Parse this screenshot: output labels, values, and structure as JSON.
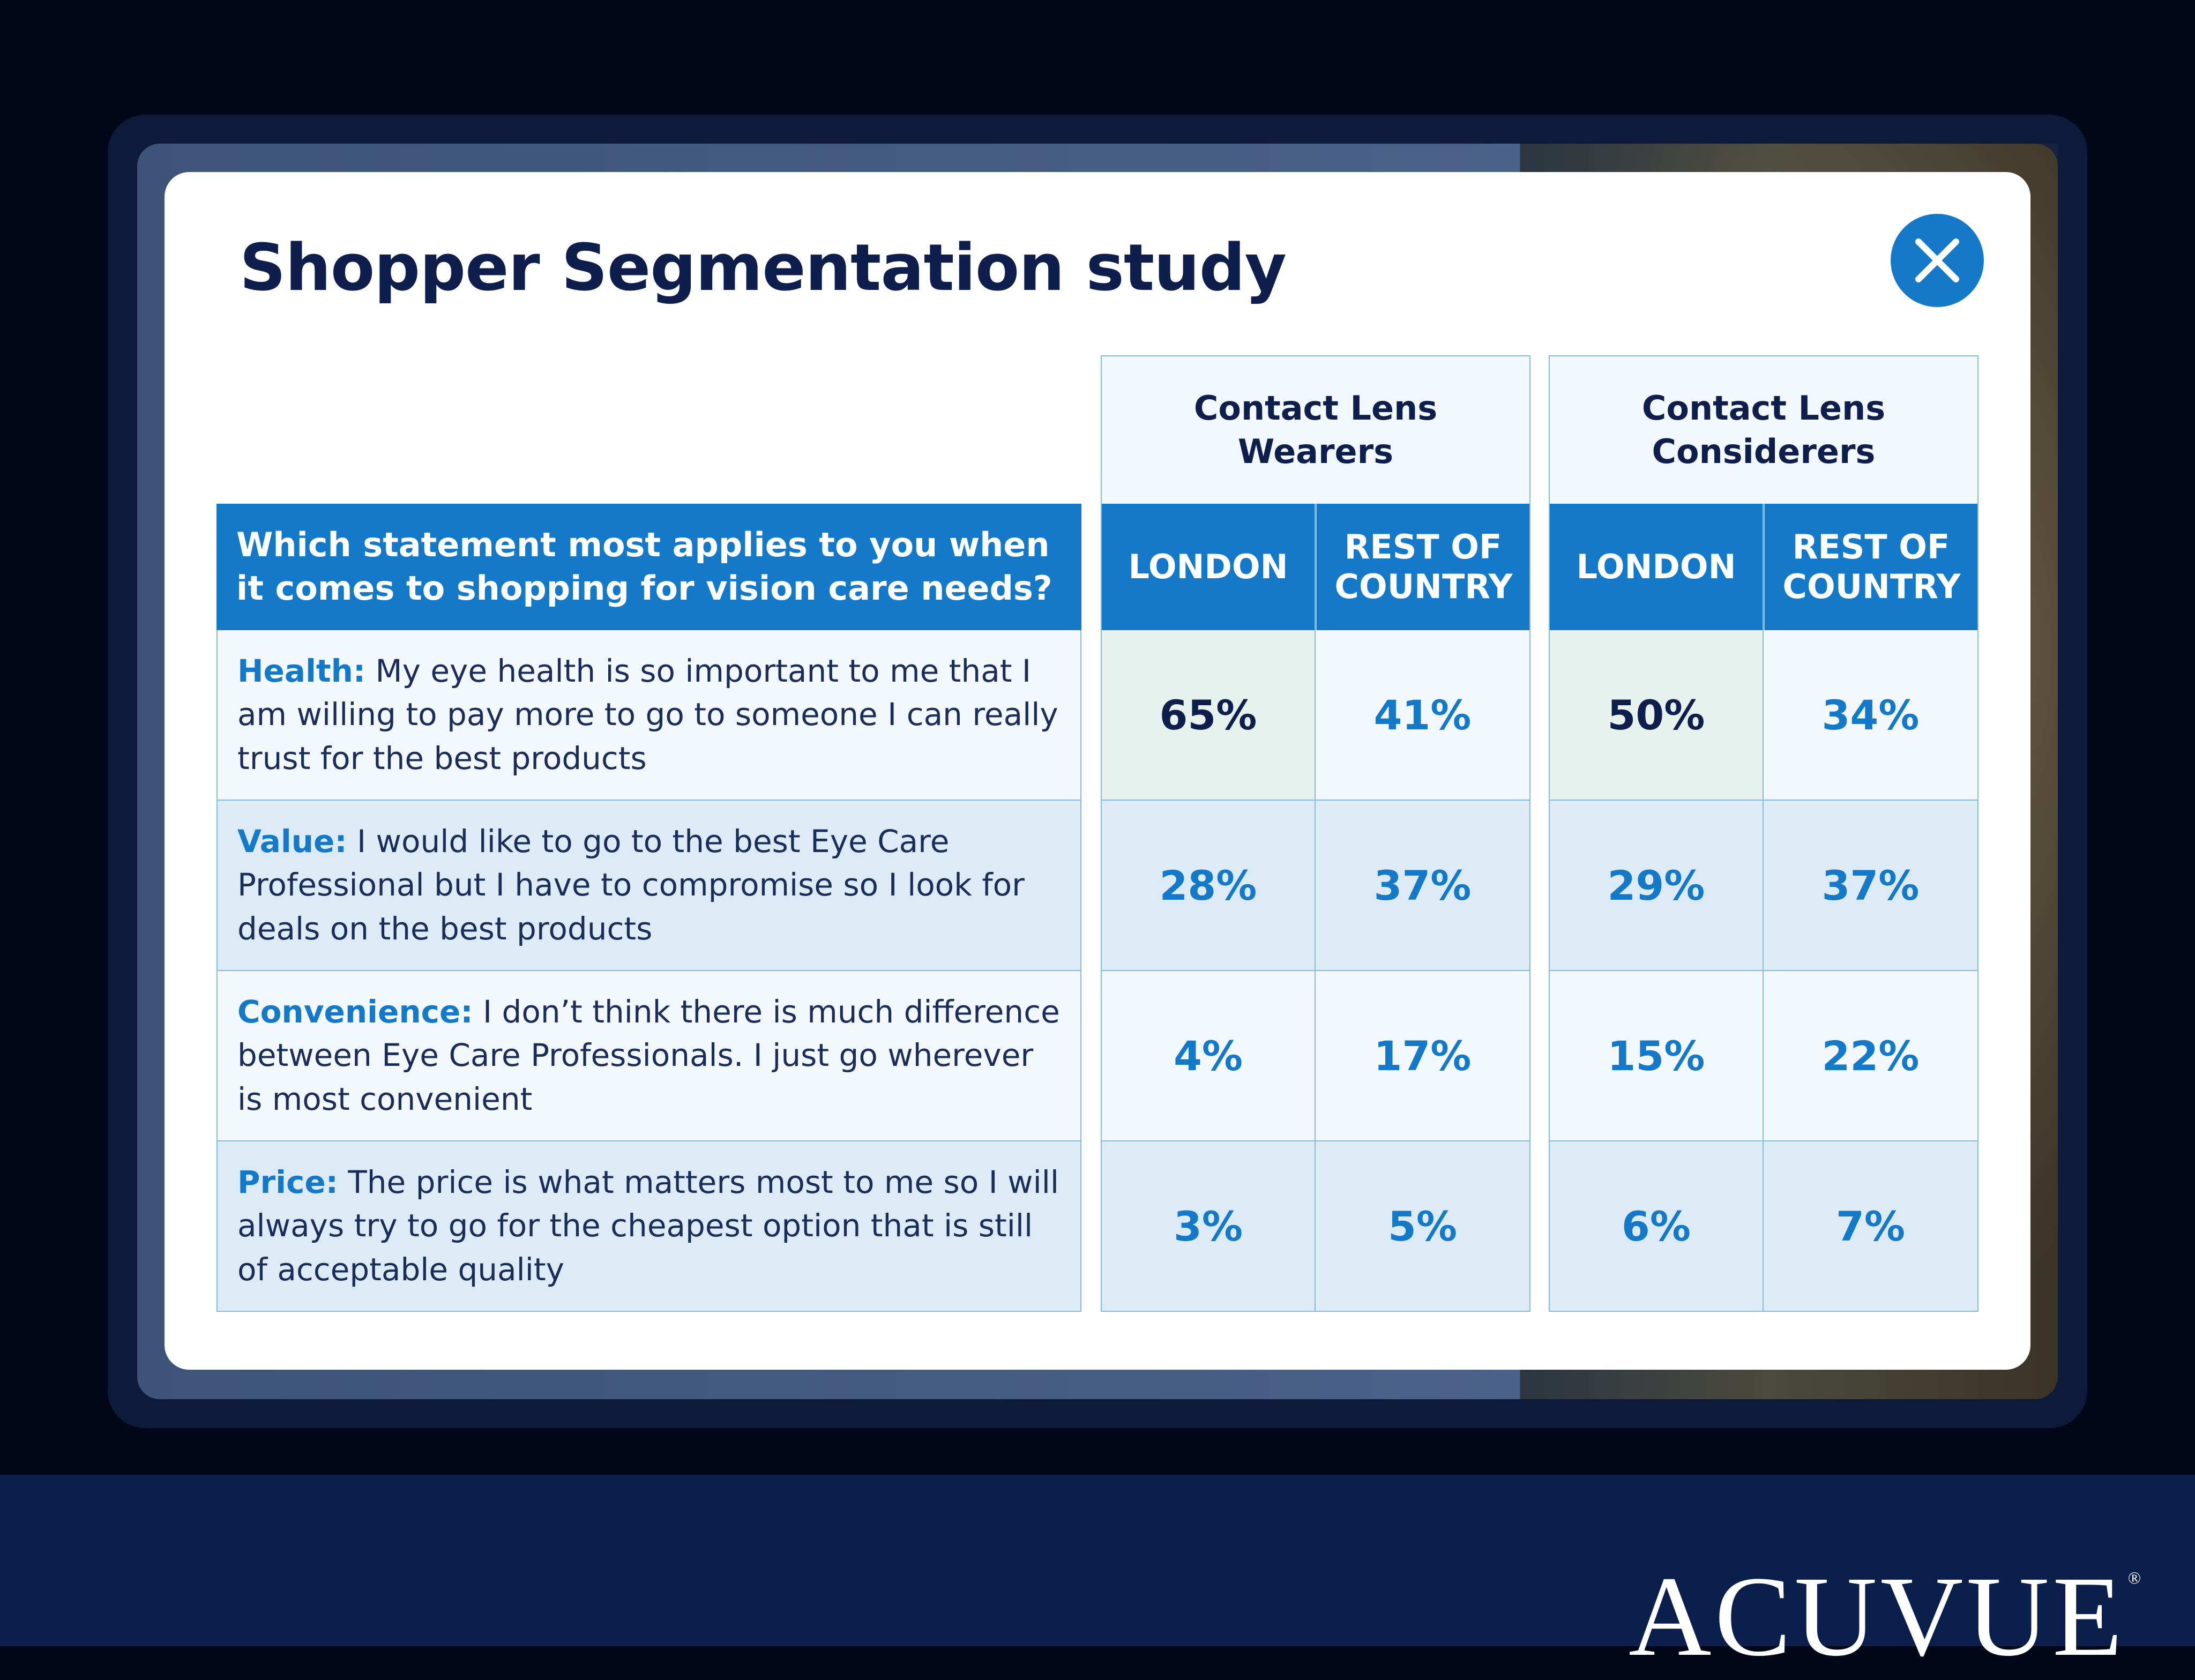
{
  "modal": {
    "title": "Shopper Segmentation study",
    "close_icon": "close-icon"
  },
  "table": {
    "groups": [
      {
        "label": "Contact Lens Wearers",
        "columns": [
          "LONDON",
          "REST OF COUNTRY"
        ]
      },
      {
        "label": "Contact Lens Considerers",
        "columns": [
          "LONDON",
          "REST OF COUNTRY"
        ]
      }
    ],
    "question": "Which statement most applies to you when it comes to shopping for vision care needs?",
    "rows": [
      {
        "label": "Health:",
        "text": "My eye health is so important to me that I am willing to pay more to go to someone I can really trust for the best products",
        "values": [
          "65%",
          "41%",
          "50%",
          "34%"
        ]
      },
      {
        "label": "Value:",
        "text": "I would like to go to the best Eye Care Professional but I have to compromise so I look for deals on the best products",
        "values": [
          "28%",
          "37%",
          "29%",
          "37%"
        ]
      },
      {
        "label": "Convenience:",
        "text": "I don’t think there is much difference between Eye Care Professionals. I just go wherever is most convenient",
        "values": [
          "4%",
          "17%",
          "15%",
          "22%"
        ]
      },
      {
        "label": "Price:",
        "text": "The price is what matters most to me so I will always try to go for the cheapest option that is still of acceptable quality",
        "values": [
          "3%",
          "5%",
          "6%",
          "7%"
        ]
      }
    ]
  },
  "brand": {
    "logo": "ACUVUE",
    "registered": "®"
  },
  "colors": {
    "accent": "#1479c8",
    "navy": "#0e1f4d",
    "border": "#84bcdc"
  }
}
